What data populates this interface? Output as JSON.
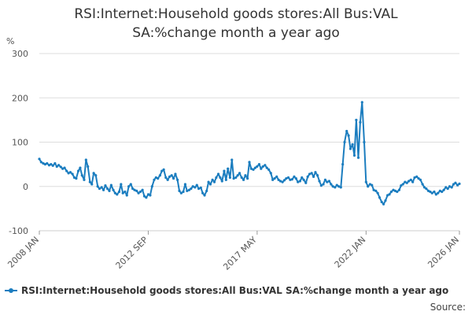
{
  "chart_data": {
    "type": "line",
    "title_lines": [
      "RSI:Internet:Household goods stores:All Bus:VAL",
      "SA:%change month a year ago"
    ],
    "ylabel": "%",
    "ylim": [
      -100,
      300
    ],
    "yticks": [
      -100,
      0,
      100,
      200,
      300
    ],
    "xlim": [
      2008.0,
      2026.0
    ],
    "x_tick_values": [
      2008.0,
      2012.667,
      2017.333,
      2022.0,
      2026.0
    ],
    "x_tick_labels": [
      "2008 JAN",
      "2012 SEP",
      "2017 MAY",
      "2022 JAN",
      "2026 JAN"
    ],
    "grid": true,
    "legend_position": "bottom-left",
    "color": "#1b7dbf",
    "series": [
      {
        "name": "RSI:Internet:Household goods stores:All Bus:VAL SA:%change month a year ago",
        "points": [
          [
            2008.0,
            62
          ],
          [
            2008.08,
            55
          ],
          [
            2008.17,
            52
          ],
          [
            2008.25,
            50
          ],
          [
            2008.33,
            52
          ],
          [
            2008.42,
            48
          ],
          [
            2008.5,
            50
          ],
          [
            2008.58,
            47
          ],
          [
            2008.67,
            52
          ],
          [
            2008.75,
            45
          ],
          [
            2008.83,
            48
          ],
          [
            2008.92,
            44
          ],
          [
            2009.0,
            40
          ],
          [
            2009.08,
            42
          ],
          [
            2009.17,
            35
          ],
          [
            2009.25,
            30
          ],
          [
            2009.33,
            32
          ],
          [
            2009.42,
            28
          ],
          [
            2009.5,
            20
          ],
          [
            2009.58,
            18
          ],
          [
            2009.67,
            35
          ],
          [
            2009.75,
            42
          ],
          [
            2009.83,
            25
          ],
          [
            2009.92,
            15
          ],
          [
            2010.0,
            60
          ],
          [
            2010.08,
            45
          ],
          [
            2010.17,
            10
          ],
          [
            2010.25,
            5
          ],
          [
            2010.33,
            30
          ],
          [
            2010.42,
            25
          ],
          [
            2010.5,
            0
          ],
          [
            2010.58,
            -5
          ],
          [
            2010.67,
            -2
          ],
          [
            2010.75,
            -8
          ],
          [
            2010.83,
            2
          ],
          [
            2010.92,
            -5
          ],
          [
            2011.0,
            -10
          ],
          [
            2011.08,
            3
          ],
          [
            2011.17,
            -8
          ],
          [
            2011.25,
            -15
          ],
          [
            2011.33,
            -18
          ],
          [
            2011.42,
            -12
          ],
          [
            2011.5,
            5
          ],
          [
            2011.58,
            -15
          ],
          [
            2011.67,
            -12
          ],
          [
            2011.75,
            -20
          ],
          [
            2011.83,
            0
          ],
          [
            2011.92,
            5
          ],
          [
            2012.0,
            -5
          ],
          [
            2012.08,
            -8
          ],
          [
            2012.17,
            -10
          ],
          [
            2012.25,
            -15
          ],
          [
            2012.33,
            -12
          ],
          [
            2012.42,
            -8
          ],
          [
            2012.5,
            -22
          ],
          [
            2012.58,
            -25
          ],
          [
            2012.67,
            -18
          ],
          [
            2012.75,
            -20
          ],
          [
            2012.83,
            0
          ],
          [
            2012.92,
            15
          ],
          [
            2013.0,
            20
          ],
          [
            2013.08,
            18
          ],
          [
            2013.17,
            25
          ],
          [
            2013.25,
            35
          ],
          [
            2013.33,
            38
          ],
          [
            2013.42,
            20
          ],
          [
            2013.5,
            15
          ],
          [
            2013.58,
            22
          ],
          [
            2013.67,
            25
          ],
          [
            2013.75,
            18
          ],
          [
            2013.83,
            28
          ],
          [
            2013.92,
            15
          ],
          [
            2014.0,
            -10
          ],
          [
            2014.08,
            -15
          ],
          [
            2014.17,
            -12
          ],
          [
            2014.25,
            5
          ],
          [
            2014.33,
            -10
          ],
          [
            2014.42,
            -8
          ],
          [
            2014.5,
            -5
          ],
          [
            2014.58,
            0
          ],
          [
            2014.67,
            -2
          ],
          [
            2014.75,
            3
          ],
          [
            2014.83,
            -5
          ],
          [
            2014.92,
            -3
          ],
          [
            2015.0,
            -15
          ],
          [
            2015.08,
            -20
          ],
          [
            2015.17,
            -10
          ],
          [
            2015.25,
            10
          ],
          [
            2015.33,
            5
          ],
          [
            2015.42,
            15
          ],
          [
            2015.5,
            10
          ],
          [
            2015.58,
            20
          ],
          [
            2015.67,
            28
          ],
          [
            2015.75,
            20
          ],
          [
            2015.83,
            12
          ],
          [
            2015.92,
            35
          ],
          [
            2016.0,
            15
          ],
          [
            2016.08,
            40
          ],
          [
            2016.17,
            20
          ],
          [
            2016.25,
            60
          ],
          [
            2016.33,
            18
          ],
          [
            2016.42,
            20
          ],
          [
            2016.5,
            25
          ],
          [
            2016.58,
            30
          ],
          [
            2016.67,
            20
          ],
          [
            2016.75,
            15
          ],
          [
            2016.83,
            25
          ],
          [
            2016.92,
            18
          ],
          [
            2017.0,
            55
          ],
          [
            2017.08,
            40
          ],
          [
            2017.17,
            38
          ],
          [
            2017.25,
            42
          ],
          [
            2017.33,
            45
          ],
          [
            2017.42,
            50
          ],
          [
            2017.5,
            40
          ],
          [
            2017.58,
            45
          ],
          [
            2017.67,
            48
          ],
          [
            2017.75,
            42
          ],
          [
            2017.83,
            38
          ],
          [
            2017.92,
            30
          ],
          [
            2018.0,
            15
          ],
          [
            2018.08,
            18
          ],
          [
            2018.17,
            22
          ],
          [
            2018.25,
            15
          ],
          [
            2018.33,
            12
          ],
          [
            2018.42,
            10
          ],
          [
            2018.5,
            14
          ],
          [
            2018.58,
            18
          ],
          [
            2018.67,
            20
          ],
          [
            2018.75,
            15
          ],
          [
            2018.83,
            16
          ],
          [
            2018.92,
            22
          ],
          [
            2019.0,
            18
          ],
          [
            2019.08,
            10
          ],
          [
            2019.17,
            12
          ],
          [
            2019.25,
            20
          ],
          [
            2019.33,
            15
          ],
          [
            2019.42,
            8
          ],
          [
            2019.5,
            22
          ],
          [
            2019.58,
            28
          ],
          [
            2019.67,
            30
          ],
          [
            2019.75,
            22
          ],
          [
            2019.83,
            32
          ],
          [
            2019.92,
            25
          ],
          [
            2020.0,
            12
          ],
          [
            2020.08,
            2
          ],
          [
            2020.17,
            5
          ],
          [
            2020.25,
            15
          ],
          [
            2020.33,
            10
          ],
          [
            2020.42,
            12
          ],
          [
            2020.5,
            5
          ],
          [
            2020.58,
            0
          ],
          [
            2020.67,
            -2
          ],
          [
            2020.75,
            3
          ],
          [
            2020.83,
            0
          ],
          [
            2020.92,
            -2
          ],
          [
            2021.0,
            50
          ],
          [
            2021.08,
            100
          ],
          [
            2021.17,
            125
          ],
          [
            2021.25,
            115
          ],
          [
            2021.33,
            85
          ],
          [
            2021.42,
            95
          ],
          [
            2021.5,
            70
          ],
          [
            2021.58,
            150
          ],
          [
            2021.67,
            65
          ],
          [
            2021.75,
            145
          ],
          [
            2021.83,
            190
          ],
          [
            2021.92,
            100
          ],
          [
            2022.0,
            10
          ],
          [
            2022.08,
            0
          ],
          [
            2022.17,
            5
          ],
          [
            2022.25,
            3
          ],
          [
            2022.33,
            -8
          ],
          [
            2022.42,
            -10
          ],
          [
            2022.5,
            -15
          ],
          [
            2022.58,
            -25
          ],
          [
            2022.67,
            -35
          ],
          [
            2022.75,
            -40
          ],
          [
            2022.83,
            -32
          ],
          [
            2022.92,
            -20
          ],
          [
            2023.0,
            -18
          ],
          [
            2023.08,
            -12
          ],
          [
            2023.17,
            -8
          ],
          [
            2023.25,
            -10
          ],
          [
            2023.33,
            -12
          ],
          [
            2023.42,
            -8
          ],
          [
            2023.5,
            2
          ],
          [
            2023.58,
            5
          ],
          [
            2023.67,
            10
          ],
          [
            2023.75,
            8
          ],
          [
            2023.83,
            12
          ],
          [
            2023.92,
            15
          ],
          [
            2024.0,
            10
          ],
          [
            2024.08,
            20
          ],
          [
            2024.17,
            22
          ],
          [
            2024.25,
            18
          ],
          [
            2024.33,
            15
          ],
          [
            2024.42,
            5
          ],
          [
            2024.5,
            -2
          ],
          [
            2024.58,
            -5
          ],
          [
            2024.67,
            -10
          ],
          [
            2024.75,
            -12
          ],
          [
            2024.83,
            -15
          ],
          [
            2024.92,
            -12
          ],
          [
            2025.0,
            -18
          ],
          [
            2025.08,
            -15
          ],
          [
            2025.17,
            -10
          ],
          [
            2025.25,
            -12
          ],
          [
            2025.33,
            -8
          ],
          [
            2025.42,
            -2
          ],
          [
            2025.5,
            -5
          ],
          [
            2025.58,
            0
          ],
          [
            2025.67,
            -2
          ],
          [
            2025.75,
            5
          ],
          [
            2025.83,
            8
          ],
          [
            2025.92,
            3
          ],
          [
            2026.0,
            6
          ]
        ]
      }
    ]
  },
  "legend": {
    "label": "RSI:Internet:Household goods stores:All Bus:VAL SA:%change month a year ago"
  },
  "source_label": "Source:"
}
